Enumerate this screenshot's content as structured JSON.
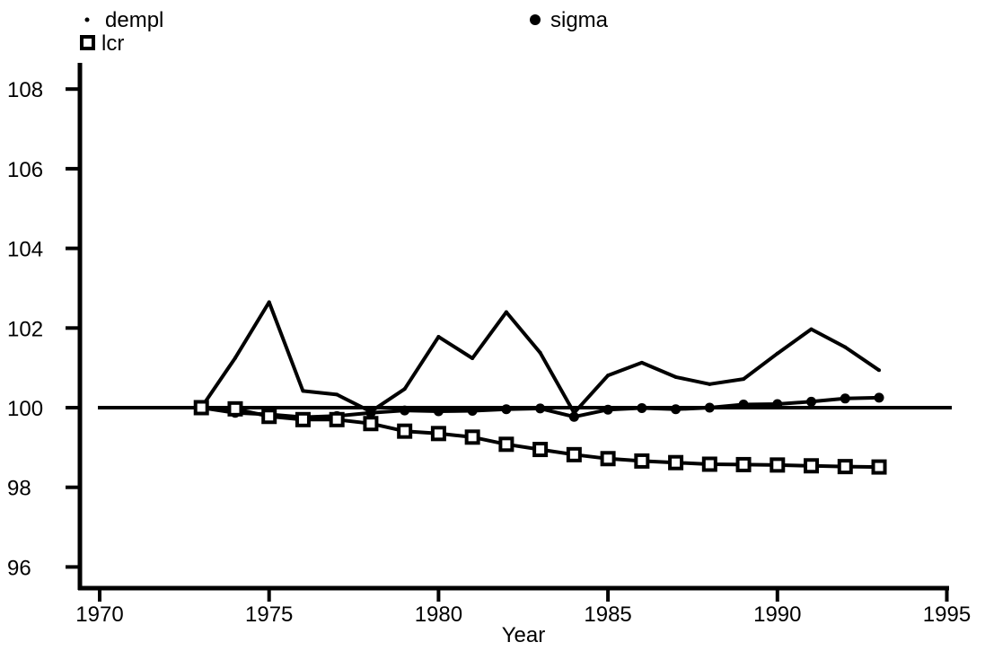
{
  "chart_data": {
    "type": "line",
    "title": "",
    "xlabel": "Year",
    "ylabel": "",
    "xlim": [
      1970,
      1995
    ],
    "ylim": [
      95.6,
      108.6
    ],
    "xticks": [
      1970,
      1975,
      1980,
      1985,
      1990,
      1995
    ],
    "yticks": [
      96,
      98,
      100,
      102,
      104,
      106,
      108
    ],
    "reference_line": 100,
    "grid": false,
    "legend": "top",
    "x": [
      1973,
      1974,
      1975,
      1976,
      1977,
      1978,
      1979,
      1980,
      1981,
      1982,
      1983,
      1984,
      1985,
      1986,
      1987,
      1988,
      1989,
      1990,
      1991,
      1992,
      1993
    ],
    "series": [
      {
        "name": "dempl",
        "marker": "dot",
        "values": [
          100.0,
          101.25,
          102.65,
          100.42,
          100.33,
          99.9,
          100.47,
          101.78,
          101.24,
          102.4,
          101.38,
          99.87,
          100.81,
          101.13,
          100.77,
          100.59,
          100.72,
          101.36,
          101.97,
          101.52,
          100.94
        ]
      },
      {
        "name": "sigma",
        "marker": "circle",
        "values": [
          100.0,
          99.87,
          99.83,
          99.76,
          99.79,
          99.87,
          99.93,
          99.91,
          99.92,
          99.96,
          99.98,
          99.77,
          99.95,
          99.99,
          99.96,
          100.0,
          100.08,
          100.09,
          100.15,
          100.23,
          100.25
        ]
      },
      {
        "name": "lcr",
        "marker": "square",
        "values": [
          100.0,
          99.97,
          99.78,
          99.7,
          99.7,
          99.6,
          99.41,
          99.35,
          99.26,
          99.08,
          98.95,
          98.82,
          98.72,
          98.66,
          98.62,
          98.58,
          98.57,
          98.56,
          98.54,
          98.52,
          98.51
        ]
      }
    ]
  }
}
